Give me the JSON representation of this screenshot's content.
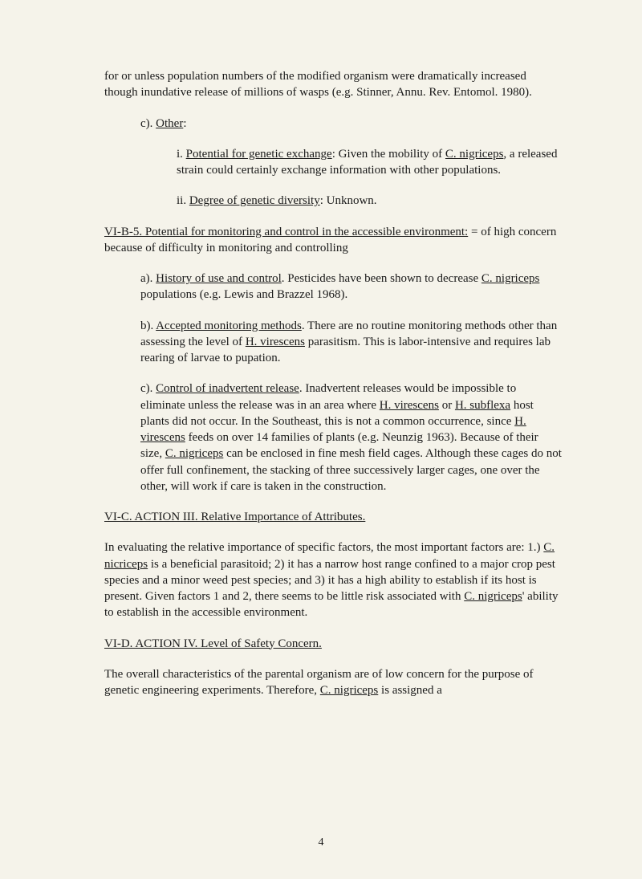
{
  "para1": {
    "text": "for or unless population numbers of the modified organism were dramatically increased though inundative release of millions of wasps (e.g. Stinner, Annu. Rev. Entomol. 1980)."
  },
  "para2": {
    "prefix": "c). ",
    "underlined": "Other",
    "suffix": ":"
  },
  "para3": {
    "prefix": "i. ",
    "underlined1": "Potential for genetic exchange",
    "mid1": ": Given the mobility of ",
    "underlined2": "C. nigriceps",
    "suffix": ", a released strain could certainly exchange information with other populations."
  },
  "para4": {
    "prefix": "ii. ",
    "underlined": "Degree of genetic diversity",
    "suffix": ": Unknown."
  },
  "para5": {
    "underlined": "VI-B-5. Potential for monitoring and control in the accessible environment:",
    "suffix": " = of high concern because of difficulty in monitoring and controlling"
  },
  "para6": {
    "prefix": "a). ",
    "underlined1": "History of use and control",
    "mid1": ". Pesticides have been shown to decrease ",
    "underlined2": "C. nigriceps",
    "suffix": " populations (e.g. Lewis and Brazzel 1968)."
  },
  "para7": {
    "prefix": "b). ",
    "underlined1": "Accepted monitoring methods",
    "mid1": ". There are no routine monitoring methods other than assessing the level of ",
    "underlined2": "H. virescens",
    "suffix": " parasitism. This is labor-intensive and requires lab rearing of larvae to pupation."
  },
  "para8": {
    "prefix": "c). ",
    "underlined1": "Control of inadvertent release",
    "mid1": ". Inadvertent releases would be impossible to eliminate unless the release was in an area where ",
    "underlined2": "H. virescens",
    "mid2": " or ",
    "underlined3": "H. subflexa",
    "mid3": " host plants did not occur. In the Southeast, this is not a common occurrence, since ",
    "underlined4": "H. virescens",
    "mid4": " feeds on over 14 families of plants (e.g. Neunzig 1963). Because of their size, ",
    "underlined5": "C. nigriceps",
    "suffix": " can be enclosed in fine mesh field cages. Although these cages do not offer full confinement, the stacking of three successively larger cages, one over the other, will work if care is taken in the construction."
  },
  "para9": {
    "underlined": "VI-C. ACTION III. Relative Importance of Attributes."
  },
  "para10": {
    "prefix": "In evaluating the relative importance of specific factors, the most important factors are: 1.) ",
    "underlined1": "C. nicriceps",
    "mid1": " is a beneficial parasitoid; 2) it has a narrow host range confined to a major crop pest species and a minor weed pest species; and 3) it has a high ability to establish if its host is present. Given factors 1 and 2, there seems to be little risk associated with ",
    "underlined2": "C. nigriceps",
    "suffix": "' ability to establish in the accessible environment."
  },
  "para11": {
    "underlined": "VI-D. ACTION IV. Level of Safety Concern."
  },
  "para12": {
    "prefix": "The overall characteristics of the parental organism are of low concern for the purpose of genetic engineering experiments. Therefore, ",
    "underlined": "C. nigriceps",
    "suffix": " is assigned a"
  },
  "pageNumber": "4"
}
